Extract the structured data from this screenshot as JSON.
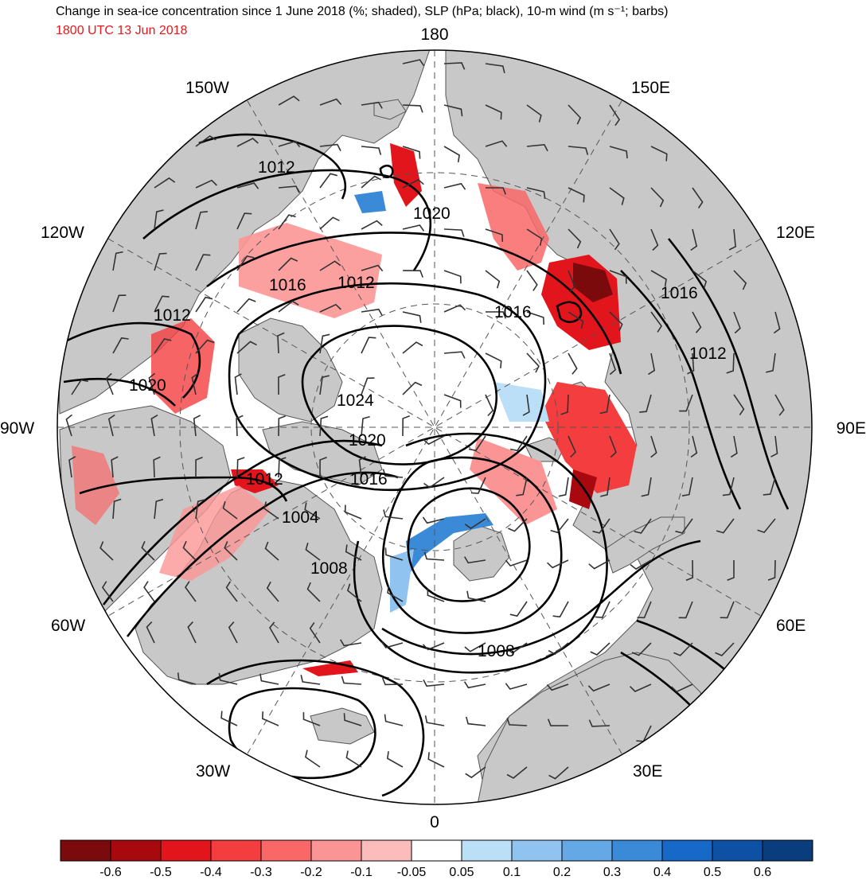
{
  "header": {
    "title": "Change in sea-ice concentration since 1 June 2018 (%; shaded), SLP (hPa; black), 10-m wind (m s⁻¹; barbs)",
    "subtitle": "1800 UTC 13 Jun 2018"
  },
  "map": {
    "projection": "north polar stereographic",
    "longitude_labels": {
      "top": "180",
      "bottom": "0",
      "left": "90W",
      "right": "90E",
      "upper_left_150": "150W",
      "upper_right_150": "150E",
      "upper_left_120": "120W",
      "upper_right_120": "120E",
      "lower_left_60": "60W",
      "lower_right_60": "60E",
      "lower_left_30": "30W",
      "lower_right_30": "30E"
    },
    "isobar_labels": [
      {
        "id": "i1012a",
        "text": "1012"
      },
      {
        "id": "i1020a",
        "text": "1020"
      },
      {
        "id": "i1016a",
        "text": "1016"
      },
      {
        "id": "i1012b",
        "text": "1012"
      },
      {
        "id": "i1012c",
        "text": "1012"
      },
      {
        "id": "i1020b",
        "text": "1020"
      },
      {
        "id": "i1024",
        "text": "1024"
      },
      {
        "id": "i1020c",
        "text": "1020"
      },
      {
        "id": "i1016b",
        "text": "1016"
      },
      {
        "id": "i1012d",
        "text": "1012"
      },
      {
        "id": "i1004",
        "text": "1004"
      },
      {
        "id": "i1008a",
        "text": "1008"
      },
      {
        "id": "i1008b",
        "text": "1008"
      },
      {
        "id": "i1016c",
        "text": "1016"
      },
      {
        "id": "i1016d",
        "text": "1016"
      },
      {
        "id": "i1012e",
        "text": "1012"
      }
    ],
    "colors": {
      "land": "#c8c8c8",
      "ocean": "#ffffff",
      "isobar": "#000000",
      "subtitle": "#e8171c"
    }
  },
  "colorbar": {
    "colors": [
      "#7a0a0b",
      "#a8090f",
      "#e2141c",
      "#f43d3f",
      "#fa6767",
      "#fb9595",
      "#fdbcbc",
      "#ffffff",
      "#bcdff8",
      "#90c3ef",
      "#64a8e6",
      "#3b8ad8",
      "#1668c9",
      "#0e50a3",
      "#0a3d7e"
    ],
    "ticks": [
      "-0.6",
      "-0.5",
      "-0.4",
      "-0.3",
      "-0.2",
      "-0.1",
      "-0.05",
      "0.05",
      "0.1",
      "0.2",
      "0.3",
      "0.4",
      "0.5",
      "0.6"
    ]
  }
}
